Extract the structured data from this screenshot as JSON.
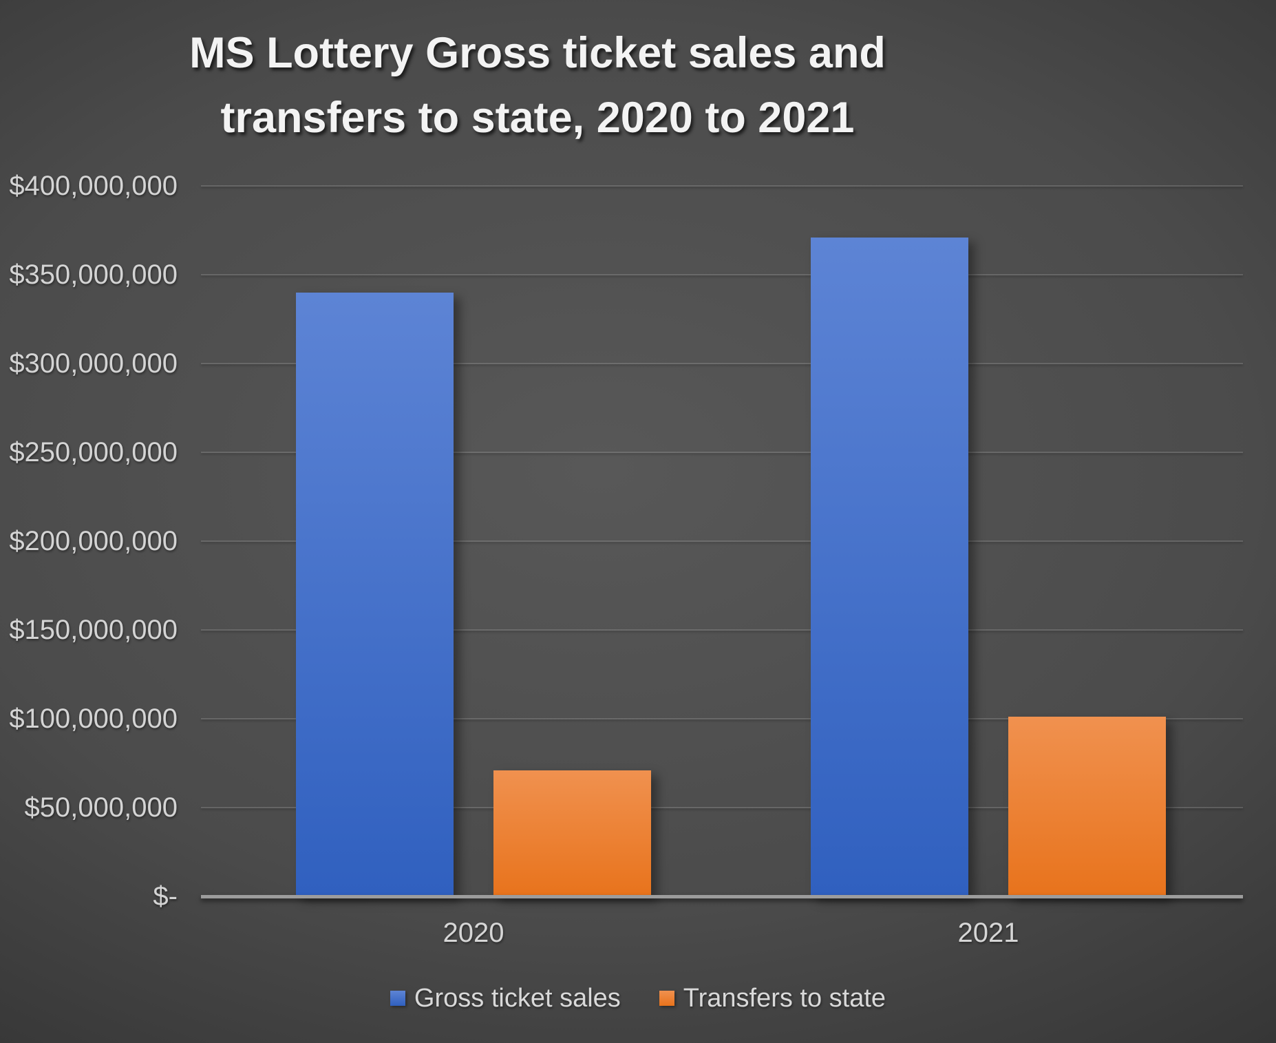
{
  "chart_data": {
    "type": "bar",
    "title": "MS Lottery Gross ticket sales and transfers to state, 2020 to 2021",
    "title_lines": [
      "MS Lottery Gross ticket sales and",
      "transfers to state, 2020 to 2021"
    ],
    "categories": [
      "2020",
      "2021"
    ],
    "series": [
      {
        "name": "Gross ticket sales",
        "values": [
          340000000,
          371000000
        ],
        "color": "#4472c4",
        "gradient_top": "#5d84d5",
        "gradient_bottom": "#3060bf"
      },
      {
        "name": "Transfers to state",
        "values": [
          71000000,
          101000000
        ],
        "color": "#ed7d31",
        "gradient_top": "#f0914f",
        "gradient_bottom": "#e8731c"
      }
    ],
    "xlabel": "",
    "ylabel": "",
    "ylim": [
      0,
      400000000
    ],
    "grid": true,
    "legend_position": "bottom",
    "y_ticks": [
      {
        "value": 0,
        "label": "$-"
      },
      {
        "value": 50000000,
        "label": "$50,000,000"
      },
      {
        "value": 100000000,
        "label": "$100,000,000"
      },
      {
        "value": 150000000,
        "label": "$150,000,000"
      },
      {
        "value": 200000000,
        "label": "$200,000,000"
      },
      {
        "value": 250000000,
        "label": "$250,000,000"
      },
      {
        "value": 300000000,
        "label": "$300,000,000"
      },
      {
        "value": 350000000,
        "label": "$350,000,000"
      },
      {
        "value": 400000000,
        "label": "$400,000,000"
      }
    ]
  },
  "colors": {
    "background_center": "#585858",
    "background_edge": "#252526",
    "gridline": "#5a5a5a",
    "axis_line": "#9c9c9c",
    "title_text": "#f3f3f3",
    "tick_text": "#d4d4d4",
    "category_text": "#d6d6d6",
    "legend_text": "#d9d9d9"
  }
}
